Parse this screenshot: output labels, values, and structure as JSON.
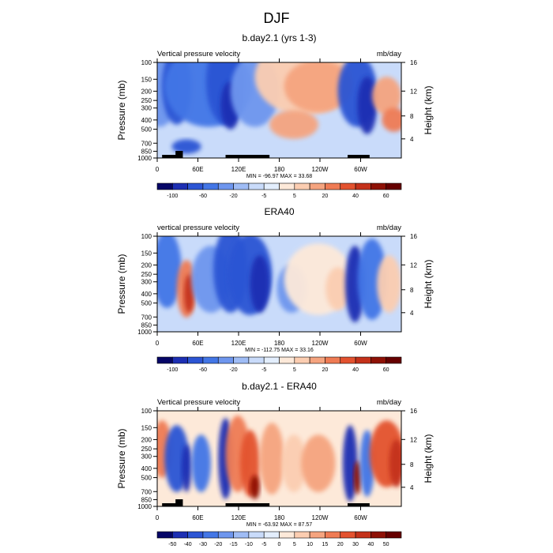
{
  "figure": {
    "title": "DJF"
  },
  "chart_data": [
    {
      "type": "heatmap",
      "panel_title": "b.day2.1 (yrs 1-3)",
      "left_label": "Vertical pressure velocity",
      "right_label": "mb/day",
      "ylabel": "Pressure (mb)",
      "ylabel_right": "Height (km)",
      "x_ticks": [
        "0",
        "60E",
        "120E",
        "180",
        "120W",
        "60W"
      ],
      "y_ticks": [
        "100",
        "150",
        "200",
        "250",
        "300",
        "400",
        "500",
        "700",
        "850",
        "1000"
      ],
      "height_ticks": [
        "16",
        "12",
        "8",
        "4"
      ],
      "stats": "MIN = -96.97  MAX =  33.68",
      "colorbar_labels": [
        "-100",
        "-60",
        "-20",
        "-5",
        "5",
        "20",
        "40",
        "60"
      ],
      "colorbar_colors": [
        "#060667",
        "#1d2fb3",
        "#2c55d4",
        "#4376e6",
        "#6e96ee",
        "#9fbcf5",
        "#c9dbfa",
        "#e3eefd",
        "#fde9d9",
        "#fbcdb1",
        "#f5a47f",
        "#ef7b54",
        "#e3522f",
        "#c4311a",
        "#8e1106",
        "#660000"
      ],
      "has_land_bars": true
    },
    {
      "type": "heatmap",
      "panel_title": "ERA40",
      "left_label": "vertical pressure velocity",
      "right_label": "mb/day",
      "ylabel": "Pressure (mb)",
      "ylabel_right": "Height (km)",
      "x_ticks": [
        "0",
        "60E",
        "120E",
        "180",
        "120W",
        "60W"
      ],
      "y_ticks": [
        "100",
        "150",
        "200",
        "250",
        "300",
        "400",
        "500",
        "700",
        "850",
        "1000"
      ],
      "height_ticks": [
        "16",
        "12",
        "8",
        "4"
      ],
      "stats": "MIN = -112.75  MAX =  33.16",
      "colorbar_labels": [
        "-100",
        "-60",
        "-20",
        "-5",
        "5",
        "20",
        "40",
        "60"
      ],
      "colorbar_colors": [
        "#060667",
        "#1d2fb3",
        "#2c55d4",
        "#4376e6",
        "#6e96ee",
        "#9fbcf5",
        "#c9dbfa",
        "#e3eefd",
        "#fde9d9",
        "#fbcdb1",
        "#f5a47f",
        "#ef7b54",
        "#e3522f",
        "#c4311a",
        "#8e1106",
        "#660000"
      ],
      "has_land_bars": false
    },
    {
      "type": "heatmap",
      "panel_title": "b.day2.1 - ERA40",
      "left_label": "Vertical pressure velocity",
      "right_label": "mb/day",
      "ylabel": "Pressure (mb)",
      "ylabel_right": "Height (km)",
      "x_ticks": [
        "0",
        "60E",
        "120E",
        "180",
        "120W",
        "60W"
      ],
      "y_ticks": [
        "100",
        "150",
        "200",
        "250",
        "300",
        "400",
        "500",
        "700",
        "850",
        "1000"
      ],
      "height_ticks": [
        "16",
        "12",
        "8",
        "4"
      ],
      "stats": "MIN = -63.92  MAX =  87.57",
      "colorbar_labels": [
        "-50",
        "-40",
        "-30",
        "-20",
        "-15",
        "-10",
        "-5",
        "0",
        "5",
        "10",
        "15",
        "20",
        "30",
        "40",
        "50"
      ],
      "colorbar_colors": [
        "#060667",
        "#1d2fb3",
        "#2c55d4",
        "#4376e6",
        "#6e96ee",
        "#9fbcf5",
        "#c9dbfa",
        "#e3eefd",
        "#fde9d9",
        "#fbcdb1",
        "#f5a47f",
        "#ef7b54",
        "#e3522f",
        "#c4311a",
        "#8e1106",
        "#660000"
      ],
      "has_land_bars": true
    }
  ]
}
